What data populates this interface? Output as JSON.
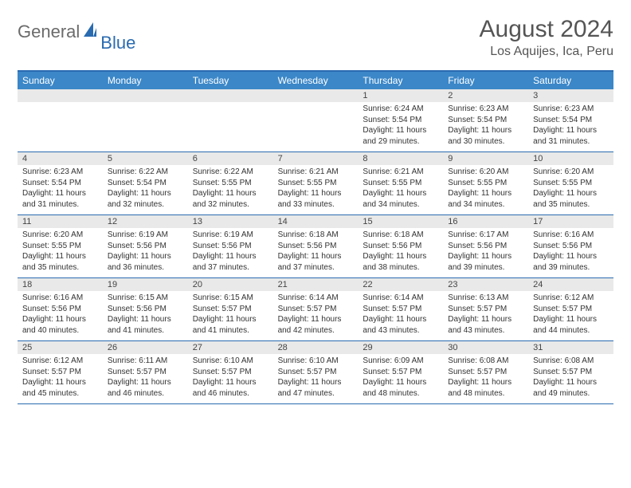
{
  "logo": {
    "part1": "General",
    "part2": "Blue"
  },
  "header": {
    "month_title": "August 2024",
    "location": "Los Aquijes, Ica, Peru"
  },
  "colors": {
    "header_band": "#3b87c8",
    "border_blue": "#2a6bb0",
    "date_bg": "#e9e9e9",
    "logo_gray": "#6b6b6b",
    "logo_blue": "#2a6bb0",
    "title_color": "#555555"
  },
  "day_labels": [
    "Sunday",
    "Monday",
    "Tuesday",
    "Wednesday",
    "Thursday",
    "Friday",
    "Saturday"
  ],
  "weeks": [
    [
      {
        "date": "",
        "lines": [
          "",
          "",
          "",
          ""
        ]
      },
      {
        "date": "",
        "lines": [
          "",
          "",
          "",
          ""
        ]
      },
      {
        "date": "",
        "lines": [
          "",
          "",
          "",
          ""
        ]
      },
      {
        "date": "",
        "lines": [
          "",
          "",
          "",
          ""
        ]
      },
      {
        "date": "1",
        "lines": [
          "Sunrise: 6:24 AM",
          "Sunset: 5:54 PM",
          "Daylight: 11 hours",
          "and 29 minutes."
        ]
      },
      {
        "date": "2",
        "lines": [
          "Sunrise: 6:23 AM",
          "Sunset: 5:54 PM",
          "Daylight: 11 hours",
          "and 30 minutes."
        ]
      },
      {
        "date": "3",
        "lines": [
          "Sunrise: 6:23 AM",
          "Sunset: 5:54 PM",
          "Daylight: 11 hours",
          "and 31 minutes."
        ]
      }
    ],
    [
      {
        "date": "4",
        "lines": [
          "Sunrise: 6:23 AM",
          "Sunset: 5:54 PM",
          "Daylight: 11 hours",
          "and 31 minutes."
        ]
      },
      {
        "date": "5",
        "lines": [
          "Sunrise: 6:22 AM",
          "Sunset: 5:54 PM",
          "Daylight: 11 hours",
          "and 32 minutes."
        ]
      },
      {
        "date": "6",
        "lines": [
          "Sunrise: 6:22 AM",
          "Sunset: 5:55 PM",
          "Daylight: 11 hours",
          "and 32 minutes."
        ]
      },
      {
        "date": "7",
        "lines": [
          "Sunrise: 6:21 AM",
          "Sunset: 5:55 PM",
          "Daylight: 11 hours",
          "and 33 minutes."
        ]
      },
      {
        "date": "8",
        "lines": [
          "Sunrise: 6:21 AM",
          "Sunset: 5:55 PM",
          "Daylight: 11 hours",
          "and 34 minutes."
        ]
      },
      {
        "date": "9",
        "lines": [
          "Sunrise: 6:20 AM",
          "Sunset: 5:55 PM",
          "Daylight: 11 hours",
          "and 34 minutes."
        ]
      },
      {
        "date": "10",
        "lines": [
          "Sunrise: 6:20 AM",
          "Sunset: 5:55 PM",
          "Daylight: 11 hours",
          "and 35 minutes."
        ]
      }
    ],
    [
      {
        "date": "11",
        "lines": [
          "Sunrise: 6:20 AM",
          "Sunset: 5:55 PM",
          "Daylight: 11 hours",
          "and 35 minutes."
        ]
      },
      {
        "date": "12",
        "lines": [
          "Sunrise: 6:19 AM",
          "Sunset: 5:56 PM",
          "Daylight: 11 hours",
          "and 36 minutes."
        ]
      },
      {
        "date": "13",
        "lines": [
          "Sunrise: 6:19 AM",
          "Sunset: 5:56 PM",
          "Daylight: 11 hours",
          "and 37 minutes."
        ]
      },
      {
        "date": "14",
        "lines": [
          "Sunrise: 6:18 AM",
          "Sunset: 5:56 PM",
          "Daylight: 11 hours",
          "and 37 minutes."
        ]
      },
      {
        "date": "15",
        "lines": [
          "Sunrise: 6:18 AM",
          "Sunset: 5:56 PM",
          "Daylight: 11 hours",
          "and 38 minutes."
        ]
      },
      {
        "date": "16",
        "lines": [
          "Sunrise: 6:17 AM",
          "Sunset: 5:56 PM",
          "Daylight: 11 hours",
          "and 39 minutes."
        ]
      },
      {
        "date": "17",
        "lines": [
          "Sunrise: 6:16 AM",
          "Sunset: 5:56 PM",
          "Daylight: 11 hours",
          "and 39 minutes."
        ]
      }
    ],
    [
      {
        "date": "18",
        "lines": [
          "Sunrise: 6:16 AM",
          "Sunset: 5:56 PM",
          "Daylight: 11 hours",
          "and 40 minutes."
        ]
      },
      {
        "date": "19",
        "lines": [
          "Sunrise: 6:15 AM",
          "Sunset: 5:56 PM",
          "Daylight: 11 hours",
          "and 41 minutes."
        ]
      },
      {
        "date": "20",
        "lines": [
          "Sunrise: 6:15 AM",
          "Sunset: 5:57 PM",
          "Daylight: 11 hours",
          "and 41 minutes."
        ]
      },
      {
        "date": "21",
        "lines": [
          "Sunrise: 6:14 AM",
          "Sunset: 5:57 PM",
          "Daylight: 11 hours",
          "and 42 minutes."
        ]
      },
      {
        "date": "22",
        "lines": [
          "Sunrise: 6:14 AM",
          "Sunset: 5:57 PM",
          "Daylight: 11 hours",
          "and 43 minutes."
        ]
      },
      {
        "date": "23",
        "lines": [
          "Sunrise: 6:13 AM",
          "Sunset: 5:57 PM",
          "Daylight: 11 hours",
          "and 43 minutes."
        ]
      },
      {
        "date": "24",
        "lines": [
          "Sunrise: 6:12 AM",
          "Sunset: 5:57 PM",
          "Daylight: 11 hours",
          "and 44 minutes."
        ]
      }
    ],
    [
      {
        "date": "25",
        "lines": [
          "Sunrise: 6:12 AM",
          "Sunset: 5:57 PM",
          "Daylight: 11 hours",
          "and 45 minutes."
        ]
      },
      {
        "date": "26",
        "lines": [
          "Sunrise: 6:11 AM",
          "Sunset: 5:57 PM",
          "Daylight: 11 hours",
          "and 46 minutes."
        ]
      },
      {
        "date": "27",
        "lines": [
          "Sunrise: 6:10 AM",
          "Sunset: 5:57 PM",
          "Daylight: 11 hours",
          "and 46 minutes."
        ]
      },
      {
        "date": "28",
        "lines": [
          "Sunrise: 6:10 AM",
          "Sunset: 5:57 PM",
          "Daylight: 11 hours",
          "and 47 minutes."
        ]
      },
      {
        "date": "29",
        "lines": [
          "Sunrise: 6:09 AM",
          "Sunset: 5:57 PM",
          "Daylight: 11 hours",
          "and 48 minutes."
        ]
      },
      {
        "date": "30",
        "lines": [
          "Sunrise: 6:08 AM",
          "Sunset: 5:57 PM",
          "Daylight: 11 hours",
          "and 48 minutes."
        ]
      },
      {
        "date": "31",
        "lines": [
          "Sunrise: 6:08 AM",
          "Sunset: 5:57 PM",
          "Daylight: 11 hours",
          "and 49 minutes."
        ]
      }
    ]
  ]
}
